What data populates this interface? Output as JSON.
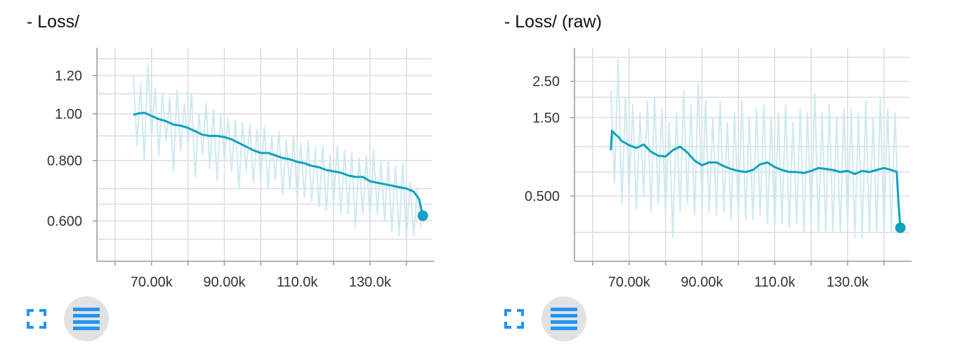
{
  "charts": [
    {
      "title": "- Loss/",
      "actions": {
        "expand_icon": "fullscreen-icon",
        "data_icon": "list-lines-icon"
      },
      "chart_data": {
        "type": "line",
        "scale": "log",
        "xlim": [
          55000,
          147000
        ],
        "ylim": [
          0.495,
          1.37
        ],
        "xticks": [
          70000,
          90000,
          110000,
          130000
        ],
        "xtick_labels": [
          "70.00k",
          "90.00k",
          "110.0k",
          "130.0k"
        ],
        "yticks": [
          0.6,
          0.8,
          1.0,
          1.2
        ],
        "ytick_labels": [
          "0.600",
          "0.800",
          "1.00",
          "1.20"
        ],
        "grid": true,
        "series": [
          {
            "role": "smoothed",
            "color": "#0ea2c0",
            "x": [
              65000,
              66000,
              68000,
              70000,
              72000,
              74000,
              76000,
              78000,
              80000,
              82000,
              84000,
              86000,
              88000,
              90000,
              92000,
              94000,
              96000,
              98000,
              100000,
              102000,
              104000,
              106000,
              108000,
              110000,
              112000,
              114000,
              116000,
              118000,
              120000,
              122000,
              124000,
              126000,
              128000,
              130000,
              132000,
              134000,
              136000,
              138000,
              140000,
              142000,
              143500,
              144500
            ],
            "y": [
              0.995,
              1.0,
              1.005,
              0.99,
              0.975,
              0.965,
              0.95,
              0.945,
              0.935,
              0.92,
              0.905,
              0.9,
              0.9,
              0.895,
              0.885,
              0.87,
              0.855,
              0.84,
              0.83,
              0.83,
              0.82,
              0.81,
              0.805,
              0.795,
              0.79,
              0.78,
              0.775,
              0.765,
              0.76,
              0.755,
              0.745,
              0.74,
              0.74,
              0.725,
              0.72,
              0.715,
              0.71,
              0.705,
              0.7,
              0.69,
              0.665,
              0.615
            ]
          },
          {
            "role": "raw",
            "color": "#cdeaf0",
            "x": [
              65000,
              66000,
              67000,
              68000,
              69000,
              70000,
              71000,
              72000,
              73000,
              74000,
              75000,
              76000,
              77000,
              78000,
              79000,
              80000,
              81000,
              82000,
              83000,
              84000,
              85000,
              86000,
              87000,
              88000,
              89000,
              90000,
              91000,
              92000,
              93000,
              94000,
              95000,
              96000,
              97000,
              98000,
              99000,
              100000,
              101000,
              102000,
              103000,
              104000,
              105000,
              106000,
              107000,
              108000,
              109000,
              110000,
              111000,
              112000,
              113000,
              114000,
              115000,
              116000,
              117000,
              118000,
              119000,
              120000,
              121000,
              122000,
              123000,
              124000,
              125000,
              126000,
              127000,
              128000,
              129000,
              130000,
              131000,
              132000,
              133000,
              134000,
              135000,
              136000,
              137000,
              138000,
              139000,
              140000,
              141000,
              142000,
              143000,
              144000
            ],
            "y": [
              1.2,
              0.86,
              1.15,
              0.8,
              1.27,
              0.9,
              1.13,
              0.82,
              1.1,
              0.88,
              1.08,
              0.76,
              1.12,
              0.84,
              1.05,
              0.86,
              1.1,
              0.74,
              1.0,
              0.82,
              1.05,
              0.77,
              1.02,
              0.73,
              1.0,
              0.8,
              0.98,
              0.76,
              0.97,
              0.7,
              0.96,
              0.76,
              0.95,
              0.72,
              0.93,
              0.73,
              0.94,
              0.7,
              0.9,
              0.73,
              0.92,
              0.68,
              0.88,
              0.7,
              0.9,
              0.66,
              0.87,
              0.67,
              0.88,
              0.66,
              0.85,
              0.64,
              0.86,
              0.63,
              0.82,
              0.65,
              0.86,
              0.62,
              0.84,
              0.62,
              0.83,
              0.58,
              0.81,
              0.62,
              0.82,
              0.6,
              0.84,
              0.62,
              0.8,
              0.6,
              0.8,
              0.57,
              0.78,
              0.56,
              0.79,
              0.55,
              0.72,
              0.56,
              0.7,
              0.58
            ]
          }
        ],
        "endpoint": {
          "x": 144500,
          "y": 0.615
        }
      }
    },
    {
      "title": "- Loss/ (raw)",
      "actions": {
        "expand_icon": "fullscreen-icon",
        "data_icon": "list-lines-icon"
      },
      "chart_data": {
        "type": "line",
        "scale": "log",
        "xlim": [
          55000,
          147000
        ],
        "ylim": [
          0.2,
          4.0
        ],
        "xticks": [
          70000,
          90000,
          110000,
          130000
        ],
        "xtick_labels": [
          "70.00k",
          "90.00k",
          "110.0k",
          "130.0k"
        ],
        "yticks": [
          0.5,
          1.5,
          2.5
        ],
        "ytick_labels": [
          "0.500",
          "1.50",
          "2.50"
        ],
        "grid": true,
        "series": [
          {
            "role": "smoothed",
            "color": "#0ea2c0",
            "x": [
              65000,
              65300,
              66000,
              67000,
              68000,
              70000,
              72000,
              74000,
              76000,
              78000,
              80000,
              82000,
              84000,
              86000,
              88000,
              90000,
              92000,
              94000,
              96000,
              98000,
              100000,
              102000,
              104000,
              106000,
              108000,
              110000,
              112000,
              114000,
              116000,
              118000,
              120000,
              122000,
              124000,
              126000,
              128000,
              130000,
              132000,
              134000,
              136000,
              138000,
              140000,
              142000,
              143500,
              144000,
              144500
            ],
            "y": [
              0.95,
              1.25,
              1.2,
              1.15,
              1.08,
              1.02,
              0.98,
              1.03,
              0.93,
              0.88,
              0.87,
              0.95,
              1.0,
              0.92,
              0.82,
              0.77,
              0.8,
              0.8,
              0.76,
              0.73,
              0.71,
              0.7,
              0.72,
              0.78,
              0.8,
              0.75,
              0.72,
              0.7,
              0.7,
              0.69,
              0.71,
              0.74,
              0.73,
              0.72,
              0.7,
              0.71,
              0.68,
              0.71,
              0.7,
              0.72,
              0.74,
              0.72,
              0.7,
              0.45,
              0.32
            ]
          },
          {
            "role": "raw",
            "color": "#cdeaf0",
            "x": [
              65000,
              66000,
              67000,
              68000,
              69000,
              70000,
              71000,
              72000,
              73000,
              74000,
              75000,
              76000,
              77000,
              78000,
              79000,
              80000,
              81000,
              82000,
              83000,
              84000,
              85000,
              86000,
              87000,
              88000,
              89000,
              90000,
              91000,
              92000,
              93000,
              94000,
              95000,
              96000,
              97000,
              98000,
              99000,
              100000,
              101000,
              102000,
              103000,
              104000,
              105000,
              106000,
              107000,
              108000,
              109000,
              110000,
              111000,
              112000,
              113000,
              114000,
              115000,
              116000,
              117000,
              118000,
              119000,
              120000,
              121000,
              122000,
              123000,
              124000,
              125000,
              126000,
              127000,
              128000,
              129000,
              130000,
              131000,
              132000,
              133000,
              134000,
              135000,
              136000,
              137000,
              138000,
              139000,
              140000,
              141000,
              142000,
              143000,
              144000
            ],
            "y": [
              2.2,
              0.6,
              3.4,
              0.45,
              2.0,
              0.5,
              1.8,
              0.42,
              1.6,
              0.5,
              1.9,
              0.4,
              2.0,
              0.45,
              1.7,
              0.4,
              1.4,
              0.28,
              1.6,
              0.4,
              2.2,
              0.45,
              1.8,
              0.38,
              2.5,
              0.42,
              1.9,
              0.4,
              1.5,
              0.38,
              1.9,
              0.4,
              1.4,
              0.36,
              1.6,
              0.38,
              1.9,
              0.36,
              1.5,
              0.36,
              1.7,
              0.38,
              1.8,
              0.34,
              1.5,
              0.32,
              1.6,
              0.34,
              1.8,
              0.32,
              1.4,
              0.34,
              1.7,
              0.3,
              1.6,
              0.34,
              2.1,
              0.3,
              1.6,
              0.3,
              1.8,
              0.3,
              1.5,
              0.3,
              1.7,
              0.34,
              1.7,
              0.28,
              1.6,
              0.28,
              1.9,
              0.3,
              1.5,
              0.3,
              2.0,
              0.3,
              1.7,
              0.3,
              1.6,
              0.42
            ]
          }
        ],
        "endpoint": {
          "x": 144500,
          "y": 0.32
        }
      }
    }
  ]
}
